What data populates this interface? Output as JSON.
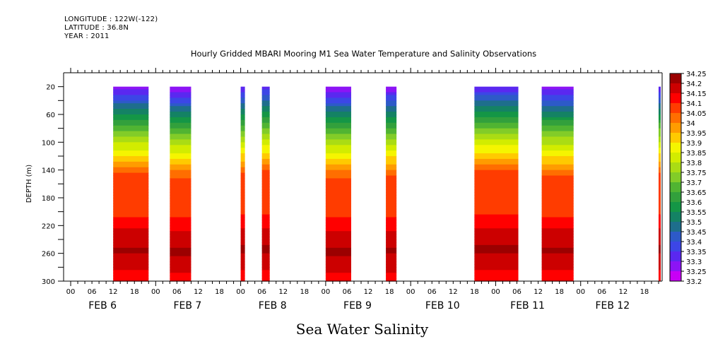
{
  "header": {
    "longitude": "LONGITUDE : 122W(-122)",
    "latitude": "LATITUDE : 36.8N",
    "year": "YEAR : 2011"
  },
  "chart_data": {
    "type": "heatmap",
    "title": "Hourly Gridded MBARI Mooring M1 Sea Water Temperature and Salinity Observations",
    "subtitle": "Sea Water Salinity",
    "ylabel": "DEPTH (m)",
    "xlabel": "",
    "ylim": [
      300,
      0
    ],
    "y_ticks": [
      20,
      60,
      100,
      140,
      180,
      220,
      260,
      300
    ],
    "x_range_hours": [
      -2,
      167
    ],
    "x_hour_ticks": [
      "00",
      "06",
      "12",
      "18",
      "00",
      "06",
      "12",
      "18",
      "00",
      "06",
      "12",
      "18",
      "00",
      "06",
      "12",
      "18",
      "00",
      "06",
      "12",
      "18",
      "00",
      "06",
      "12",
      "18",
      "00",
      "06",
      "12",
      "18"
    ],
    "x_day_labels": [
      "FEB  6",
      "FEB  7",
      "FEB  8",
      "FEB  9",
      "FEB 10",
      "FEB 11",
      "FEB 12"
    ],
    "colorbar": {
      "levels": [
        "34.25",
        "34.2",
        "34.15",
        "34.1",
        "34.05",
        "34",
        "33.95",
        "33.9",
        "33.85",
        "33.8",
        "33.75",
        "33.7",
        "33.65",
        "33.6",
        "33.55",
        "33.5",
        "33.45",
        "33.4",
        "33.35",
        "33.3",
        "33.25",
        "33.2"
      ],
      "colors": [
        "#9b0000",
        "#cc0000",
        "#ff0000",
        "#ff3c00",
        "#ff6e00",
        "#ff9c00",
        "#ffca00",
        "#f5f500",
        "#d2ec00",
        "#aadc14",
        "#82cc28",
        "#50b432",
        "#32a03c",
        "#149646",
        "#148264",
        "#1e6e8c",
        "#2d5ac8",
        "#3c46e6",
        "#5a28f0",
        "#8c14f5",
        "#c800f5"
      ]
    },
    "observation_windows_hours": [
      [
        12,
        22
      ],
      [
        28,
        34
      ],
      [
        48,
        49.2
      ],
      [
        54,
        56.2
      ],
      [
        72,
        79.2
      ],
      [
        89,
        92
      ],
      [
        114,
        126.4
      ],
      [
        133,
        142
      ],
      [
        166,
        167.5
      ]
    ],
    "profile_note": "Salinity increases with depth: ~33.3 at 20 m, ~33.8-33.9 near 100-120 m, ~34.05 at 140-200 m, ~34.2-34.25 near 250-270 m, ~34.15 at 300 m"
  }
}
